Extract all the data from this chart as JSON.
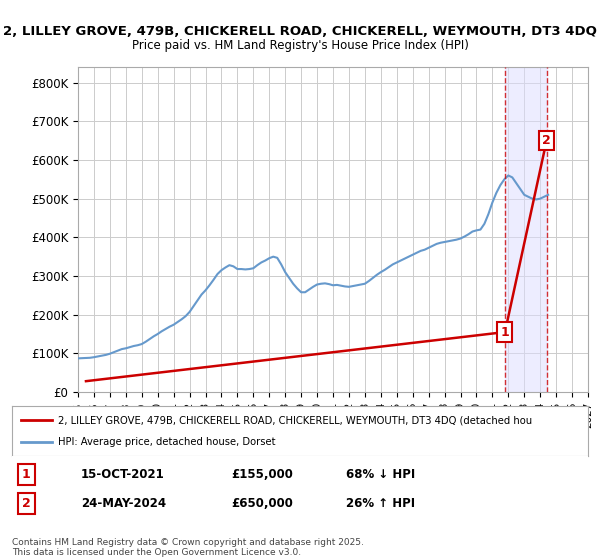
{
  "title_line1": "2, LILLEY GROVE, 479B, CHICKERELL ROAD, CHICKERELL, WEYMOUTH, DT3 4DQ",
  "title_line2": "Price paid vs. HM Land Registry's House Price Index (HPI)",
  "ylabel": "",
  "xlabel": "",
  "ylim": [
    0,
    840000
  ],
  "xlim_start": 1995,
  "xlim_end": 2027,
  "yticks": [
    0,
    100000,
    200000,
    300000,
    400000,
    500000,
    600000,
    700000,
    800000
  ],
  "ytick_labels": [
    "£0",
    "£100K",
    "£200K",
    "£300K",
    "£400K",
    "£500K",
    "£600K",
    "£700K",
    "£800K"
  ],
  "hpi_color": "#6699cc",
  "price_color": "#cc0000",
  "marker1_date": 2021.79,
  "marker1_price": 155000,
  "marker1_label": "1",
  "marker2_date": 2024.4,
  "marker2_price": 650000,
  "marker2_label": "2",
  "vline_color": "#cc0000",
  "vline_alpha": 0.5,
  "shade_color": "#ddddff",
  "shade_alpha": 0.3,
  "legend_label1": "2, LILLEY GROVE, 479B, CHICKERELL ROAD, CHICKERELL, WEYMOUTH, DT3 4DQ (detached hou",
  "legend_label2": "HPI: Average price, detached house, Dorset",
  "table_row1": [
    "1",
    "15-OCT-2021",
    "£155,000",
    "68% ↓ HPI"
  ],
  "table_row2": [
    "2",
    "24-MAY-2024",
    "£650,000",
    "26% ↑ HPI"
  ],
  "footnote": "Contains HM Land Registry data © Crown copyright and database right 2025.\nThis data is licensed under the Open Government Licence v3.0.",
  "bg_color": "#ffffff",
  "grid_color": "#cccccc",
  "hpi_data_years": [
    1995.0,
    1995.25,
    1995.5,
    1995.75,
    1996.0,
    1996.25,
    1996.5,
    1996.75,
    1997.0,
    1997.25,
    1997.5,
    1997.75,
    1998.0,
    1998.25,
    1998.5,
    1998.75,
    1999.0,
    1999.25,
    1999.5,
    1999.75,
    2000.0,
    2000.25,
    2000.5,
    2000.75,
    2001.0,
    2001.25,
    2001.5,
    2001.75,
    2002.0,
    2002.25,
    2002.5,
    2002.75,
    2003.0,
    2003.25,
    2003.5,
    2003.75,
    2004.0,
    2004.25,
    2004.5,
    2004.75,
    2005.0,
    2005.25,
    2005.5,
    2005.75,
    2006.0,
    2006.25,
    2006.5,
    2006.75,
    2007.0,
    2007.25,
    2007.5,
    2007.75,
    2008.0,
    2008.25,
    2008.5,
    2008.75,
    2009.0,
    2009.25,
    2009.5,
    2009.75,
    2010.0,
    2010.25,
    2010.5,
    2010.75,
    2011.0,
    2011.25,
    2011.5,
    2011.75,
    2012.0,
    2012.25,
    2012.5,
    2012.75,
    2013.0,
    2013.25,
    2013.5,
    2013.75,
    2014.0,
    2014.25,
    2014.5,
    2014.75,
    2015.0,
    2015.25,
    2015.5,
    2015.75,
    2016.0,
    2016.25,
    2016.5,
    2016.75,
    2017.0,
    2017.25,
    2017.5,
    2017.75,
    2018.0,
    2018.25,
    2018.5,
    2018.75,
    2019.0,
    2019.25,
    2019.5,
    2019.75,
    2020.0,
    2020.25,
    2020.5,
    2020.75,
    2021.0,
    2021.25,
    2021.5,
    2021.75,
    2022.0,
    2022.25,
    2022.5,
    2022.75,
    2023.0,
    2023.25,
    2023.5,
    2023.75,
    2024.0,
    2024.25,
    2024.5
  ],
  "hpi_data_values": [
    87000,
    87500,
    88000,
    88500,
    90000,
    92000,
    94000,
    96000,
    99000,
    103000,
    107000,
    111000,
    113000,
    116000,
    119000,
    121000,
    124000,
    130000,
    137000,
    144000,
    150000,
    157000,
    163000,
    169000,
    174000,
    181000,
    188000,
    196000,
    207000,
    222000,
    237000,
    252000,
    263000,
    276000,
    290000,
    305000,
    315000,
    322000,
    328000,
    325000,
    318000,
    318000,
    317000,
    318000,
    320000,
    328000,
    335000,
    340000,
    346000,
    350000,
    347000,
    330000,
    310000,
    295000,
    280000,
    268000,
    258000,
    258000,
    265000,
    272000,
    278000,
    280000,
    281000,
    279000,
    276000,
    277000,
    275000,
    273000,
    272000,
    274000,
    276000,
    278000,
    280000,
    287000,
    295000,
    303000,
    310000,
    316000,
    323000,
    330000,
    335000,
    340000,
    345000,
    350000,
    355000,
    360000,
    365000,
    368000,
    373000,
    378000,
    383000,
    386000,
    388000,
    390000,
    392000,
    394000,
    397000,
    402000,
    408000,
    415000,
    418000,
    420000,
    435000,
    460000,
    490000,
    515000,
    535000,
    550000,
    560000,
    555000,
    540000,
    525000,
    510000,
    505000,
    500000,
    498000,
    500000,
    505000,
    510000
  ],
  "price_paid_years": [
    1995.5,
    2021.79,
    2024.4
  ],
  "price_paid_values": [
    28000,
    155000,
    650000
  ]
}
